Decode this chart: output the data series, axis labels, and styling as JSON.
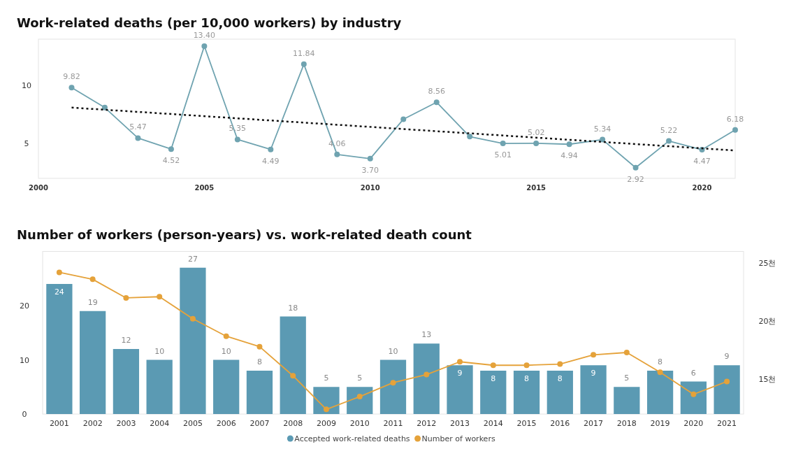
{
  "chart_data": [
    {
      "type": "line",
      "title": "Work-related deaths (per 10,000 workers) by industry",
      "x": [
        2001,
        2002,
        2003,
        2004,
        2005,
        2006,
        2007,
        2008,
        2009,
        2010,
        2011,
        2012,
        2013,
        2014,
        2015,
        2016,
        2017,
        2018,
        2019,
        2020,
        2021
      ],
      "xlim": [
        2000,
        2021
      ],
      "xticks": [
        2000,
        2005,
        2010,
        2015,
        2020
      ],
      "ylim": [
        2,
        14
      ],
      "yticks": [
        5,
        10
      ],
      "marker": "circle",
      "series": [
        {
          "color": "#6fa3b0",
          "values": [
            9.82,
            8.1,
            5.47,
            4.52,
            13.4,
            5.35,
            4.49,
            11.84,
            4.06,
            3.7,
            7.1,
            8.56,
            5.6,
            5.01,
            5.02,
            4.94,
            5.34,
            2.92,
            5.22,
            4.47,
            6.18
          ],
          "value_labels": [
            "9.82",
            null,
            "5.47",
            "4.52",
            "13.40",
            "5.35",
            "4.49",
            "11.84",
            "4.06",
            "3.70",
            null,
            "8.56",
            null,
            "5.01",
            "5.02",
            "4.94",
            "5.34",
            "2.92",
            "5.22",
            "4.47",
            "6.18"
          ]
        },
        {
          "type": "line",
          "x": [
            2001,
            2021
          ],
          "values": [
            8.1,
            4.4
          ],
          "color": "#111111",
          "line_style": "dotted",
          "marker": "none"
        }
      ]
    },
    {
      "type": "bar",
      "title": "Number of workers (person-years) vs. work-related death count",
      "categories": [
        "2001",
        "2002",
        "2003",
        "2004",
        "2005",
        "2006",
        "2007",
        "2008",
        "2009",
        "2010",
        "2011",
        "2012",
        "2013",
        "2014",
        "2015",
        "2016",
        "2017",
        "2018",
        "2019",
        "2020",
        "2021"
      ],
      "ylim": [
        0,
        30
      ],
      "yticks": [
        0,
        10,
        20
      ],
      "y2lim": [
        12,
        26
      ],
      "y2ticks": [
        {
          "value": 15,
          "label": "15천"
        },
        {
          "value": 20,
          "label": "20천"
        },
        {
          "value": 25,
          "label": "25천"
        }
      ],
      "legend": "bottom",
      "series": [
        {
          "name": "Accepted work-related deaths",
          "color": "#5b9ab3",
          "data_labels": true,
          "values": [
            24,
            19,
            12,
            10,
            27,
            10,
            8,
            18,
            5,
            5,
            10,
            13,
            9,
            8,
            8,
            8,
            9,
            5,
            8,
            6,
            9
          ]
        },
        {
          "name": "Number of workers",
          "type": "line",
          "axis": "y2",
          "color": "#e5a23a",
          "marker": "circle",
          "values": [
            24.2,
            23.6,
            22.0,
            22.1,
            20.2,
            18.7,
            17.8,
            15.3,
            12.4,
            13.5,
            14.7,
            15.4,
            16.5,
            16.2,
            16.2,
            16.3,
            17.1,
            17.3,
            15.6,
            13.7,
            14.8
          ]
        }
      ]
    }
  ]
}
